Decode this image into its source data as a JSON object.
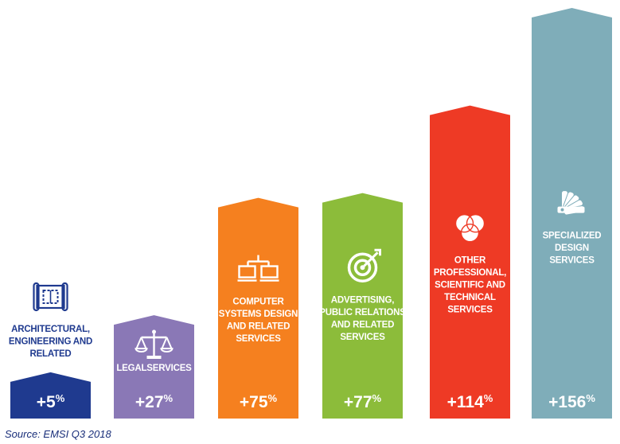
{
  "chart_data": {
    "type": "bar",
    "categories": [
      "Architectural, Engineering and Related",
      "LegalServices",
      "Computer Systems Design and Related Services",
      "Advertising, Public Relations and Related Services",
      "Other Professional, Scientific and Technical Services",
      "Specialized Design Services"
    ],
    "label_lines": [
      [
        "ARCHITECTURAL,",
        "ENGINEERING AND",
        "RELATED"
      ],
      [
        "LEGALSERVICES"
      ],
      [
        "COMPUTER",
        "SYSTEMS DESIGN",
        "AND RELATED",
        "SERVICES"
      ],
      [
        "ADVERTISING,",
        "PUBLIC RELATIONS",
        "AND RELATED",
        "SERVICES"
      ],
      [
        "OTHER",
        "PROFESSIONAL,",
        "SCIENTIFIC AND",
        "TECHNICAL",
        "SERVICES"
      ],
      [
        "SPECIALIZED",
        "DESIGN",
        "SERVICES"
      ]
    ],
    "values": [
      5,
      27,
      75,
      77,
      114,
      156
    ],
    "value_labels": [
      "+5",
      "+27",
      "+75",
      "+77",
      "+114",
      "+156"
    ],
    "unit": "%",
    "colors": [
      "#1f3a8f",
      "#8a78b6",
      "#f5801f",
      "#8cbc3a",
      "#ee3a25",
      "#7fadb9"
    ],
    "icons": [
      "blueprint-icon",
      "scales-icon",
      "network-computers-icon",
      "target-icon",
      "venn-circles-icon",
      "swatch-fan-icon"
    ],
    "label_color": "#1f3a8f",
    "icon_color": "#1f3a8f",
    "ylim": [
      0,
      156
    ],
    "grid": false,
    "legend": "none"
  },
  "source": "Source: EMSI Q3 2018"
}
